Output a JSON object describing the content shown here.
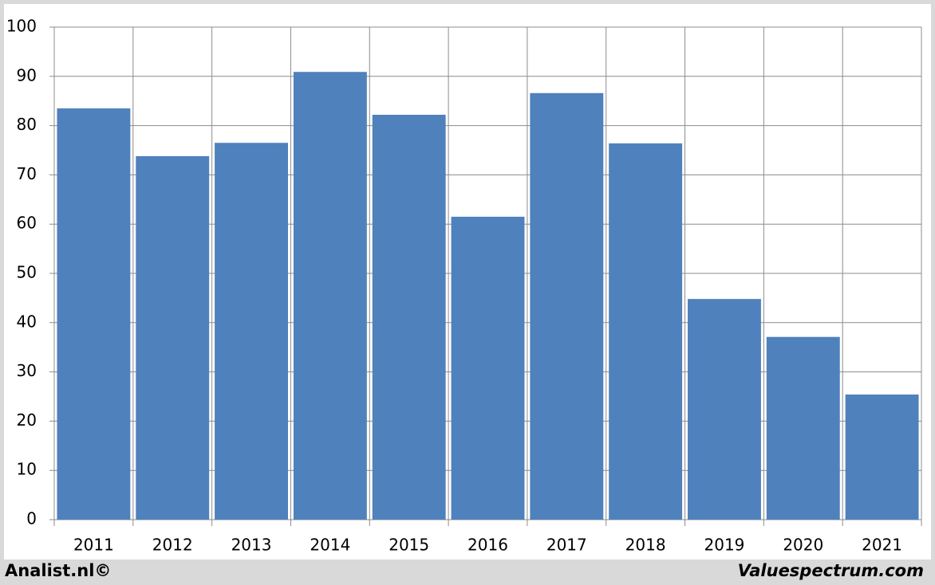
{
  "chart_data": {
    "type": "bar",
    "categories": [
      "2011",
      "2012",
      "2013",
      "2014",
      "2015",
      "2016",
      "2017",
      "2018",
      "2019",
      "2020",
      "2021"
    ],
    "values": [
      83.5,
      73.8,
      76.5,
      90.9,
      82.2,
      61.5,
      86.6,
      76.4,
      44.8,
      37.1,
      25.4
    ],
    "color": "#4f81bd",
    "ylim": [
      0,
      100
    ],
    "yticks": [
      0,
      10,
      20,
      30,
      40,
      50,
      60,
      70,
      80,
      90,
      100
    ],
    "grid": true,
    "source": "Analist.nl©",
    "credit": "Valuespectrum.com"
  }
}
